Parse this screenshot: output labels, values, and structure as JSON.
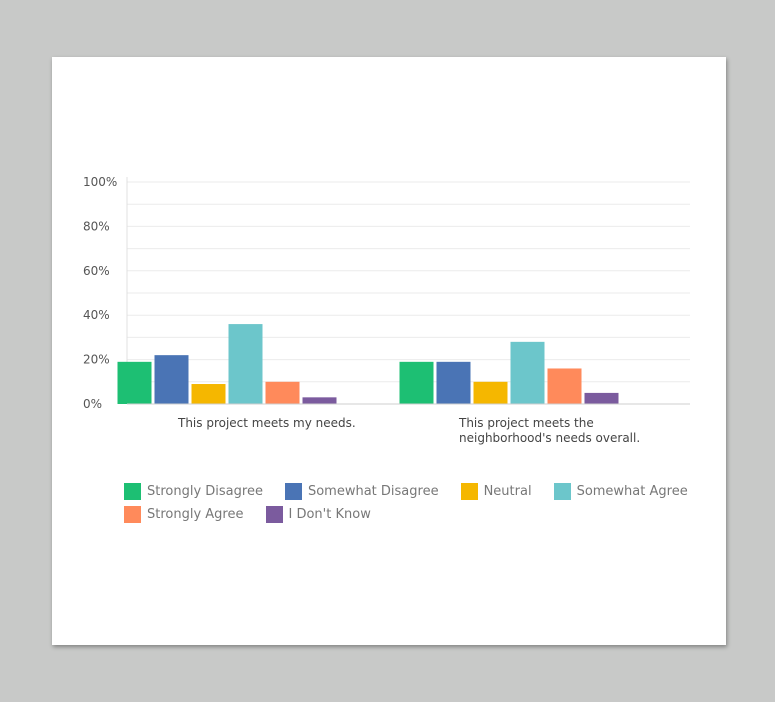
{
  "chart_data": {
    "type": "bar",
    "categories": [
      "This project meets my needs.",
      "This project meets the neighborhood's needs overall."
    ],
    "category_lines": [
      [
        "This project meets my needs."
      ],
      [
        "This project meets the",
        "neighborhood's needs overall."
      ]
    ],
    "series": [
      {
        "name": "Strongly Disagree",
        "color": "#1dbf73",
        "values": [
          19,
          19
        ]
      },
      {
        "name": "Somewhat Disagree",
        "color": "#4a74b5",
        "values": [
          22,
          19
        ]
      },
      {
        "name": "Neutral",
        "color": "#f5b700",
        "values": [
          9,
          10
        ]
      },
      {
        "name": "Somewhat Agree",
        "color": "#6cc6cb",
        "values": [
          36,
          28
        ]
      },
      {
        "name": "Strongly Agree",
        "color": "#ff8a5b",
        "values": [
          10,
          16
        ]
      },
      {
        "name": "I Don't Know",
        "color": "#7b5b9e",
        "values": [
          3,
          5
        ]
      }
    ],
    "yticks": [
      "100%",
      "80%",
      "60%",
      "40%",
      "20%",
      "0%"
    ],
    "ylim": [
      0,
      100
    ],
    "ylabel": "",
    "xlabel": "",
    "title": "",
    "grid": true,
    "legend_position": "bottom"
  }
}
